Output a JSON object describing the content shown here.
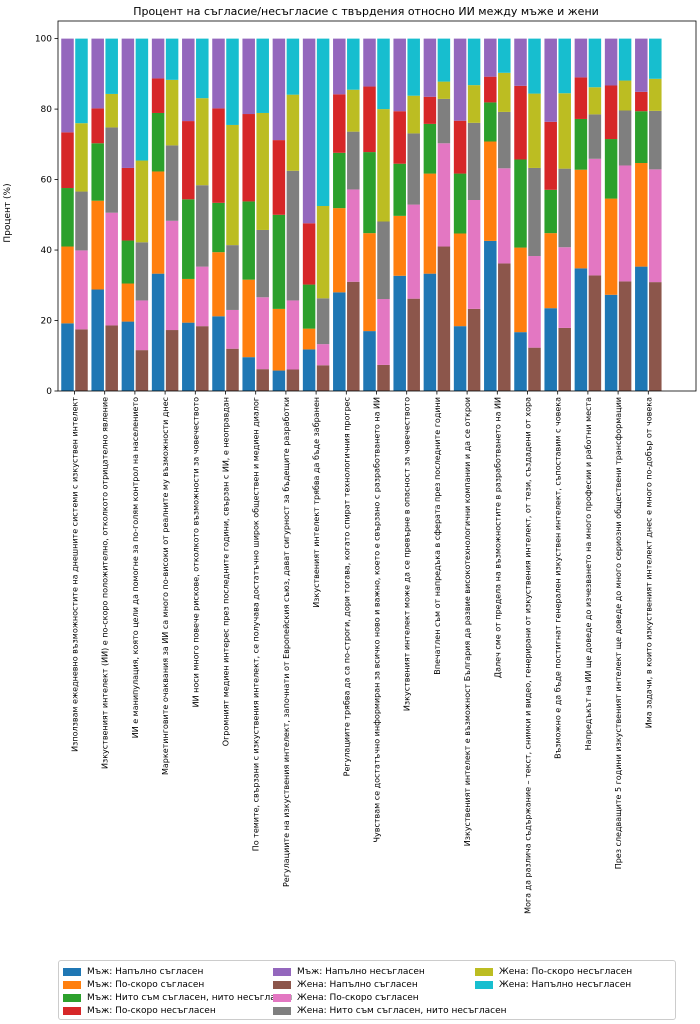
{
  "chart_data": {
    "type": "bar",
    "stacked": true,
    "grouped": true,
    "title": "Процент на съгласие/несъгласие с твърдения относно ИИ между мъже и жени",
    "xlabel": "",
    "ylabel": "Процент (%)",
    "ylim": [
      0,
      105
    ],
    "yticks": [
      "0",
      "20",
      "40",
      "60",
      "80",
      "100"
    ],
    "grid": false,
    "legend_position": "bottom",
    "groups": [
      "Мъж",
      "Жена"
    ],
    "categories": [
      "Използвам ежедневно възможностите на днешните системи с изкуствен интелект",
      "Изкуственият интелект (ИИ) е по-скоро положително, отколкото отрицателно явление",
      "ИИ е манипулация, която цели да помогне за по-голям контрол на населението",
      "Маркетинговите очаквания за ИИ са много по-високи от реалните му възможности днес",
      "ИИ носи много повече рискове, отколкото възможности за човечеството",
      "Огромният медиен интерес през последните години, свързан с ИИ, е неоправдан",
      "По темите, свързани с изкуствения интелект, се получава достатъчно широк обществен и медиен диалог",
      "Регулациите на изкуствения интелект, започнати от Европейския съюз, дават сигурност за бъдещите разработки",
      "Изкуственият интелект трябва да бъде забранен",
      "Регулациите трябва да са по-строги, дори тогава, когато спират технологичния прогрес",
      "Чувствам се достатъчно информиран за всичко ново и важно, което е свързано с разработването на ИИ",
      "Изкуственият интелект може да се превърне в опасност за човечеството",
      "Впечатлен съм от напредъка в сферата през последните години",
      "Изкуственият интелект е възможност България да развие високотехнологични компании и да се открои",
      "Далеч сме от предела на възможностите в разработването на ИИ",
      "Мога да различа съдържание – текст, снимки и видео, генерирани от изкуствения интелект, от тези, създадени от хора",
      "Възможно е да бъде постигнат генерален изкуствен интелект, съпоставим с човека",
      "Напредъкът на ИИ ще доведе до изчезването на много професии и работни места",
      "През следващите 5 години изкуственият интелект ще доведе до много сериозни обществени трансформации",
      "Има задачи, в които изкуственият интелект днес е много по-добър от човека"
    ],
    "series": [
      {
        "name": "Мъж: Напълно съгласен",
        "group": "Мъж",
        "color": "#1f77b4",
        "values": [
          19.2,
          28.8,
          19.7,
          33.3,
          19.4,
          21.2,
          9.6,
          5.8,
          11.8,
          28.0,
          17.0,
          32.7,
          33.3,
          18.4,
          42.6,
          16.7,
          23.5,
          34.8,
          27.3,
          35.3
        ]
      },
      {
        "name": "Мъж: По-скоро съгласен",
        "group": "Мъж",
        "color": "#ff7f0e",
        "values": [
          21.8,
          25.2,
          10.8,
          29.0,
          12.4,
          18.2,
          22.0,
          17.5,
          5.9,
          23.9,
          27.8,
          17.0,
          28.4,
          26.3,
          28.2,
          24.0,
          21.3,
          28.0,
          27.3,
          29.4
        ]
      },
      {
        "name": "Мъж: Нито съм съгласен, нито несъгласен",
        "group": "Мъж",
        "color": "#2ca02c",
        "values": [
          16.6,
          16.3,
          12.2,
          16.6,
          22.6,
          14.0,
          22.2,
          26.7,
          12.5,
          15.7,
          23.0,
          14.8,
          14.1,
          17.0,
          11.1,
          25.0,
          12.3,
          14.4,
          16.9,
          14.7
        ]
      },
      {
        "name": "Мъж: По-скоро несъгласен",
        "group": "Мъж",
        "color": "#d62728",
        "values": [
          15.8,
          9.9,
          20.6,
          9.8,
          22.2,
          26.8,
          24.8,
          21.2,
          17.4,
          16.6,
          18.6,
          14.9,
          7.7,
          15.0,
          7.3,
          20.9,
          19.3,
          11.8,
          15.2,
          5.5
        ]
      },
      {
        "name": "Мъж: Напълно несъгласен",
        "group": "Мъж",
        "color": "#9467bd",
        "values": [
          26.6,
          19.8,
          36.7,
          11.3,
          23.4,
          19.8,
          21.4,
          28.8,
          52.4,
          15.8,
          13.6,
          20.6,
          16.5,
          23.3,
          10.8,
          13.4,
          23.6,
          11.0,
          13.3,
          15.1
        ]
      },
      {
        "name": "Жена: Напълно съгласен",
        "group": "Жена",
        "color": "#8c564b",
        "values": [
          17.5,
          18.6,
          11.6,
          17.3,
          18.4,
          12.0,
          6.2,
          6.1,
          7.3,
          31.0,
          7.4,
          26.2,
          41.0,
          23.3,
          36.2,
          12.3,
          17.9,
          32.8,
          31.1,
          30.9
        ]
      },
      {
        "name": "Жена: По-скоро съгласен",
        "group": "Жена",
        "color": "#e377c2",
        "values": [
          22.4,
          32.0,
          14.1,
          31.0,
          16.9,
          11.0,
          20.4,
          19.6,
          6.0,
          26.2,
          18.7,
          26.7,
          29.3,
          30.9,
          27.0,
          26.0,
          22.9,
          33.1,
          32.9,
          32.0
        ]
      },
      {
        "name": "Жена: Нито съм съгласен, нито несъгласен",
        "group": "Жена",
        "color": "#7f7f7f",
        "values": [
          16.7,
          24.2,
          16.5,
          21.4,
          23.1,
          18.4,
          19.1,
          36.8,
          13.0,
          16.4,
          22.0,
          20.2,
          12.6,
          21.9,
          16.0,
          25.0,
          22.3,
          12.6,
          15.6,
          16.6
        ]
      },
      {
        "name": "Жена: По-скоро несъгласен",
        "group": "Жена",
        "color": "#bcbd22",
        "values": [
          19.4,
          9.5,
          23.2,
          18.6,
          24.7,
          34.1,
          33.2,
          21.6,
          26.2,
          11.9,
          31.9,
          10.7,
          4.9,
          10.7,
          11.1,
          21.1,
          21.4,
          7.7,
          8.5,
          9.1
        ]
      },
      {
        "name": "Жена: Напълно несъгласен",
        "group": "Жена",
        "color": "#17becf",
        "values": [
          24.0,
          15.7,
          34.6,
          11.7,
          16.9,
          24.5,
          21.1,
          15.9,
          47.5,
          14.5,
          20.0,
          16.2,
          12.2,
          13.2,
          9.7,
          15.6,
          15.5,
          13.8,
          11.9,
          11.4
        ]
      }
    ]
  }
}
